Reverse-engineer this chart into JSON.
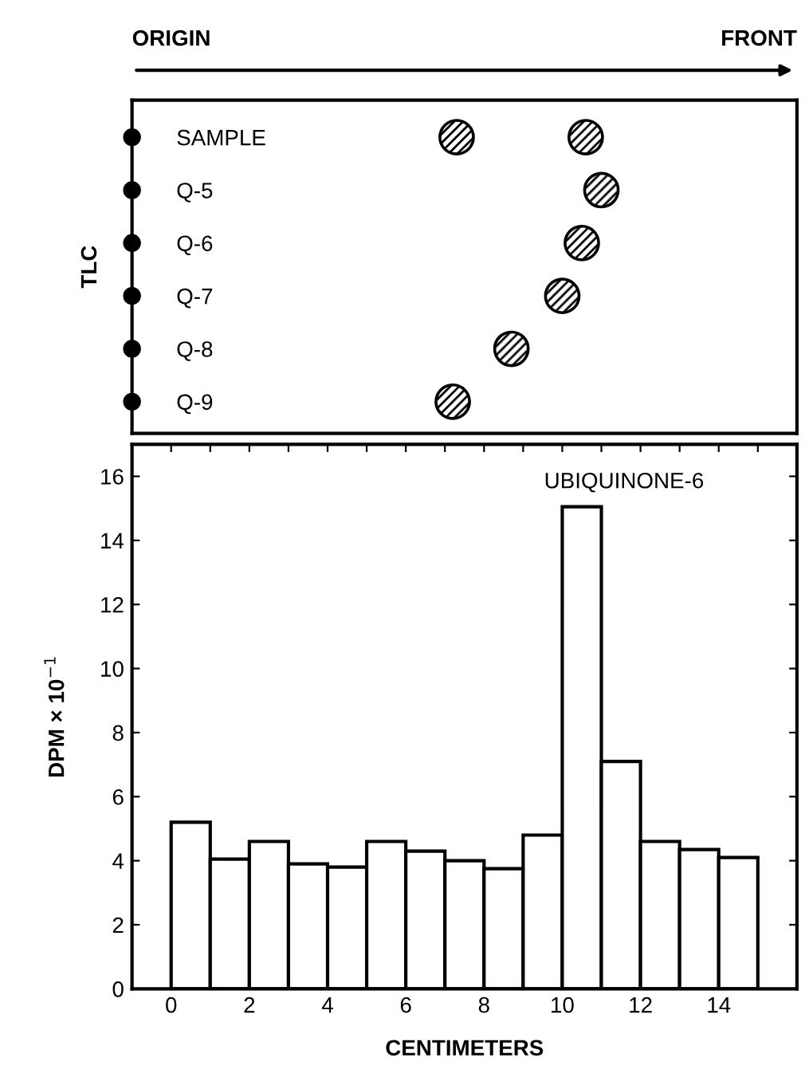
{
  "chart_data": [
    {
      "type": "scatter",
      "orientation": "horizontal",
      "ylabel": "TLC",
      "categories": [
        "SAMPLE",
        "Q-5",
        "Q-6",
        "Q-7",
        "Q-8",
        "Q-9"
      ],
      "xlim": [
        -1,
        16
      ],
      "tick_labels": "y",
      "marker": "circle",
      "grid": false,
      "legend": false,
      "series": [
        {
          "color": "#000000",
          "values": [
            -1,
            -1,
            -1,
            -1,
            -1,
            -1
          ]
        },
        {
          "color": "#000000",
          "values": [
            10.6,
            11.0,
            10.5,
            10.0,
            8.7,
            7.2
          ]
        },
        {
          "color": "#000000",
          "values": [
            7.3,
            null,
            null,
            null,
            null,
            null
          ]
        }
      ],
      "annotations": [
        "ORIGIN",
        "FRONT"
      ]
    },
    {
      "type": "histogram",
      "xlabel": "CENTIMETERS",
      "ylabel": "DPM × 10$^{−1}$",
      "bins": [
        0,
        1,
        2,
        3,
        4,
        5,
        6,
        7,
        8,
        9,
        10,
        11,
        12,
        13,
        14,
        15
      ],
      "values": [
        5.2,
        4.05,
        4.6,
        3.9,
        3.8,
        4.6,
        4.3,
        4.0,
        3.75,
        4.8,
        15.05,
        7.1,
        4.6,
        4.35,
        4.1
      ],
      "color": "#ffffff",
      "xlim": [
        -1,
        16
      ],
      "ylim": [
        0,
        17
      ],
      "xticks": [
        0,
        {
          "value": 1,
          "label": null
        },
        2,
        {
          "value": 3,
          "label": null
        },
        4,
        {
          "value": 5,
          "label": null
        },
        6,
        {
          "value": 7,
          "label": null
        },
        8,
        {
          "value": 9,
          "label": null
        },
        10,
        {
          "value": 11,
          "label": null
        },
        12,
        {
          "value": 13,
          "label": null
        },
        14,
        {
          "value": 15,
          "label": null
        }
      ],
      "yticks": [
        0,
        2,
        4,
        6,
        8,
        10,
        12,
        14,
        16
      ],
      "grid": false,
      "annotations": [
        "UBIQUINONE-6"
      ]
    }
  ]
}
